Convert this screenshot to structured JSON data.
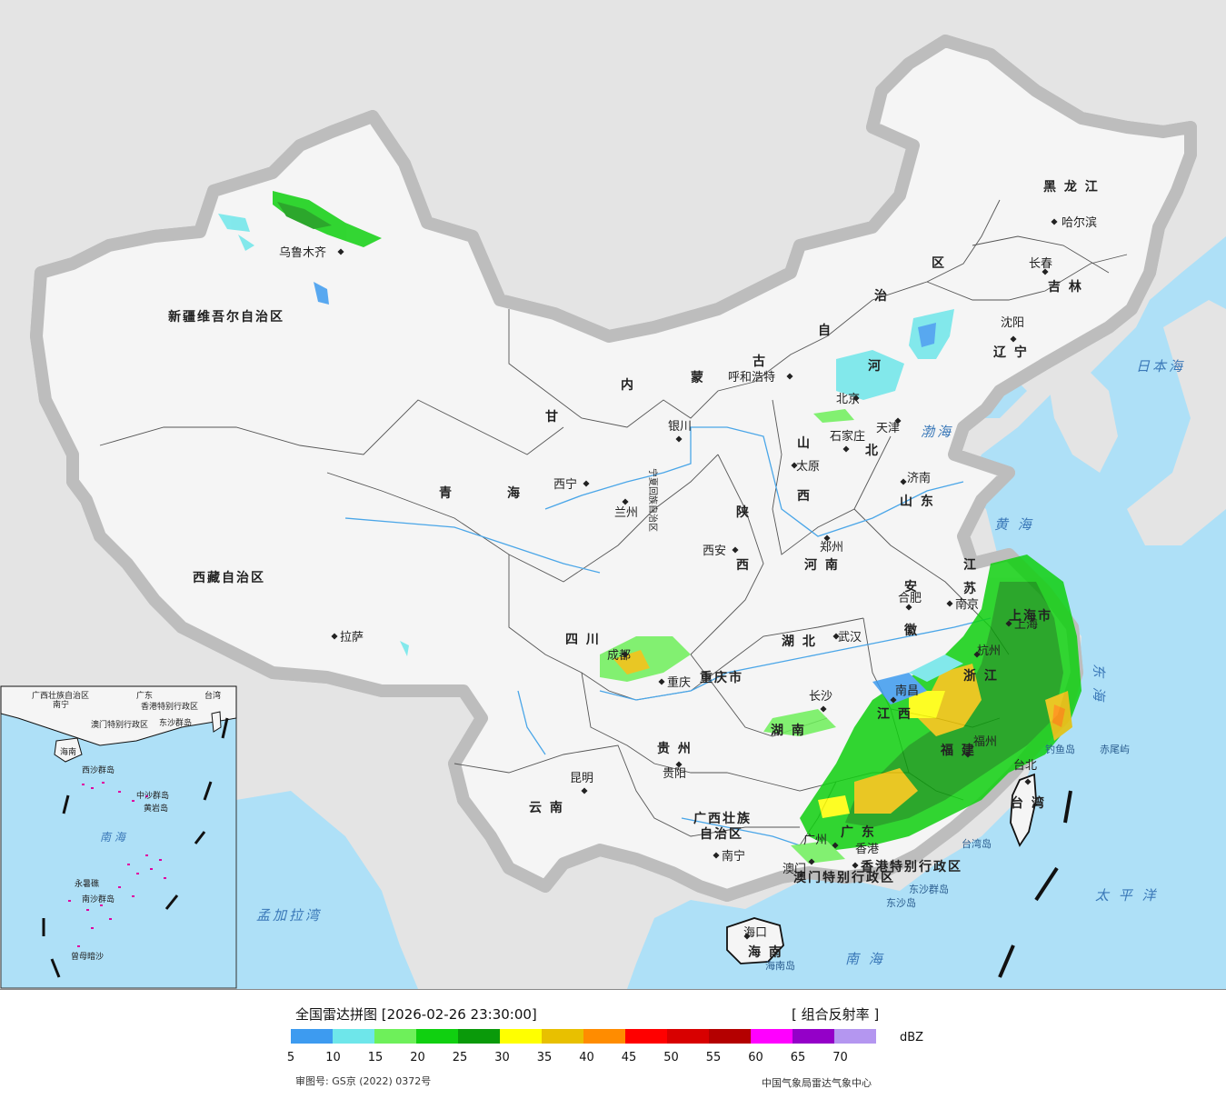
{
  "legend": {
    "title": "全国雷达拼图 [2026-02-26 23:30:00]",
    "product": "[ 组合反射率 ]",
    "unit": "dBZ",
    "ticks": [
      "5",
      "10",
      "15",
      "20",
      "25",
      "30",
      "35",
      "40",
      "45",
      "50",
      "55",
      "60",
      "65",
      "70"
    ],
    "colors": [
      "#3d9bf0",
      "#6ee6ea",
      "#6ef05a",
      "#10d010",
      "#0a9a0a",
      "#ffff00",
      "#e8c000",
      "#ff8c00",
      "#ff0000",
      "#d80000",
      "#b40000",
      "#ff00ff",
      "#9400c8",
      "#b496f0"
    ],
    "approval": "审图号: GS京 (2022) 0372号",
    "org": "中国气象局雷达气象中心"
  },
  "provinces": {
    "xinjiang": "新疆维吾尔自治区",
    "xizang": "西藏自治区",
    "qinghai_a": "青",
    "qinghai_b": "海",
    "gansu": "甘",
    "neimenggu_a": "内",
    "neimenggu_b": "蒙",
    "neimenggu_c": "古",
    "neimenggu_d": "自",
    "neimenggu_e": "治",
    "neimenggu_f": "区",
    "heilongjiang": "黑 龙 江",
    "jilin": "吉 林",
    "liaoning": "辽 宁",
    "hebei_a": "河",
    "hebei_b": "北",
    "shanxi_a": "山",
    "shanxi_b": "西",
    "shandong": "山 东",
    "henan": "河 南",
    "shaanxi_a": "陕",
    "shaanxi_b": "西",
    "ningxia": "宁夏回族自治区",
    "sichuan": "四 川",
    "chongqing": "重庆市",
    "hubei": "湖 北",
    "hunan": "湖 南",
    "anhui_a": "安",
    "anhui_b": "徽",
    "jiangsu_a": "江",
    "jiangsu_b": "苏",
    "zhejiang": "浙 江",
    "shanghai": "上海市",
    "jiangxi": "江 西",
    "fujian": "福 建",
    "guizhou": "贵 州",
    "yunnan": "云 南",
    "guangxi_a": "广西壮族",
    "guangxi_b": "自治区",
    "guangdong": "广 东",
    "hainan": "海 南",
    "taiwan": "台 湾",
    "hk": "香港特别行政区",
    "macau": "澳门特别行政区",
    "tianjin_label": "天津"
  },
  "cities": {
    "urumqi": "乌鲁木齐",
    "lhasa": "拉萨",
    "xining": "西宁",
    "lanzhou": "兰州",
    "yinchuan": "银川",
    "hohhot": "呼和浩特",
    "beijing": "北京",
    "tianjin": "天津",
    "shijiazhuang": "石家庄",
    "taiyuan": "太原",
    "jinan": "济南",
    "zhengzhou": "郑州",
    "xian": "西安",
    "harbin": "哈尔滨",
    "changchun": "长春",
    "shenyang": "沈阳",
    "nanjing": "南京",
    "hefei": "合肥",
    "shanghai": "上海",
    "wuhan": "武汉",
    "changsha": "长沙",
    "nanchang": "南昌",
    "fuzhou": "福州",
    "hangzhou": "杭州",
    "chengdu": "成都",
    "chongqing": "重庆",
    "guiyang": "贵阳",
    "kunming": "昆明",
    "nanning": "南宁",
    "guangzhou": "广州",
    "macau": "澳门",
    "hongkong": "香港",
    "haikou": "海口",
    "taibei": "台北"
  },
  "seas": {
    "bohai": "渤海",
    "huanghai": "黄 海",
    "donghai": "东 海",
    "nanhai": "南 海",
    "riben": "日本海",
    "taiping": "太 平 洋",
    "mengjiala": "孟加拉湾"
  },
  "islands": {
    "diaoyu": "钓鱼岛",
    "chiwei": "赤尾屿",
    "taiwan_dao": "台湾岛",
    "dongsha": "东沙群岛",
    "dongsha_dao": "东沙岛",
    "hainan_dao": "海南岛"
  },
  "inset": {
    "guangxi": "广西壮族自治区",
    "nanning": "南宁",
    "guangdong": "广东",
    "taiwan": "台湾",
    "hk": "香港特别行政区",
    "macau": "澳门特别行政区",
    "dongsha": "东沙群岛",
    "hainan": "海南",
    "xisha": "西沙群岛",
    "zhongsha": "中沙群岛",
    "huangyan": "黄岩岛",
    "nanhai": "南 海",
    "nansha": "南沙群岛",
    "zengmu": "曾母暗沙",
    "yongshu": "永暑礁"
  }
}
